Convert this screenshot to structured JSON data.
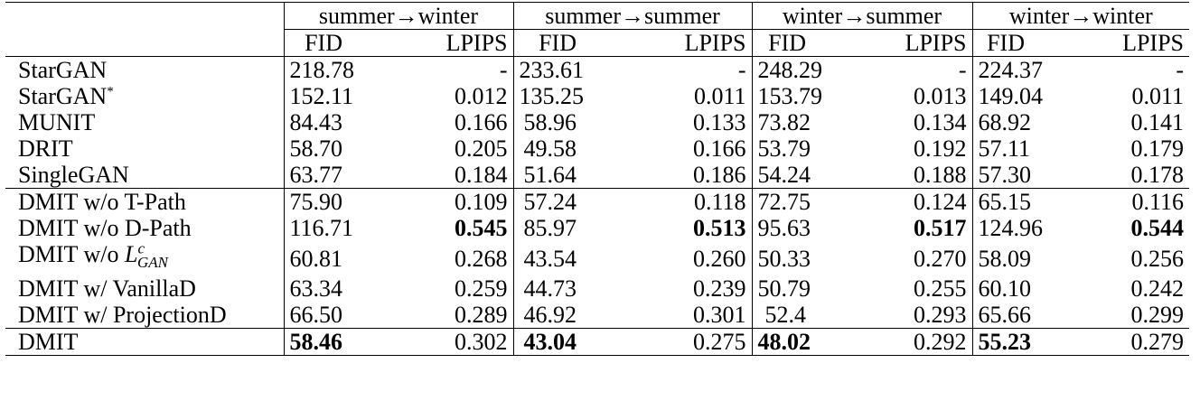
{
  "groups": [
    {
      "label": "summer→winter"
    },
    {
      "label": "summer→summer"
    },
    {
      "label": "winter→summer"
    },
    {
      "label": "winter→winter"
    }
  ],
  "sub_headers": {
    "fid": "FID",
    "lpips": "LPIPS"
  },
  "rows": [
    {
      "method": "StarGAN",
      "cells": [
        [
          "218.78",
          "-"
        ],
        [
          "233.61",
          "-"
        ],
        [
          "248.29",
          "-"
        ],
        [
          "224.37",
          "-"
        ]
      ]
    },
    {
      "method": "StarGAN*",
      "cells": [
        [
          "152.11",
          "0.012"
        ],
        [
          "135.25",
          "0.011"
        ],
        [
          "153.79",
          "0.013"
        ],
        [
          "149.04",
          "0.011"
        ]
      ]
    },
    {
      "method": "MUNIT",
      "cells": [
        [
          "84.43",
          "0.166"
        ],
        [
          "58.96",
          "0.133"
        ],
        [
          "73.82",
          "0.134"
        ],
        [
          "68.92",
          "0.141"
        ]
      ]
    },
    {
      "method": "DRIT",
      "cells": [
        [
          "58.70",
          "0.205"
        ],
        [
          "49.58",
          "0.166"
        ],
        [
          "53.79",
          "0.192"
        ],
        [
          "57.11",
          "0.179"
        ]
      ]
    },
    {
      "method": "SingleGAN",
      "cells": [
        [
          "63.77",
          "0.184"
        ],
        [
          "51.64",
          "0.186"
        ],
        [
          "54.24",
          "0.188"
        ],
        [
          "57.30",
          "0.178"
        ]
      ]
    },
    {
      "method": "DMIT w/o T-Path",
      "cells": [
        [
          "75.90",
          "0.109"
        ],
        [
          "57.24",
          "0.118"
        ],
        [
          "72.75",
          "0.124"
        ],
        [
          "65.15",
          "0.116"
        ]
      ]
    },
    {
      "method": "DMIT w/o D-Path",
      "cells": [
        [
          "116.71",
          "0.545"
        ],
        [
          "85.97",
          "0.513"
        ],
        [
          "95.63",
          "0.517"
        ],
        [
          "124.96",
          "0.544"
        ]
      ]
    },
    {
      "method": "DMIT w/o L^c_GAN",
      "cells": [
        [
          "60.81",
          "0.268"
        ],
        [
          "43.54",
          "0.260"
        ],
        [
          "50.33",
          "0.270"
        ],
        [
          "58.09",
          "0.256"
        ]
      ]
    },
    {
      "method": "DMIT w/ VanillaD",
      "cells": [
        [
          "63.34",
          "0.259"
        ],
        [
          "44.73",
          "0.239"
        ],
        [
          "50.79",
          "0.255"
        ],
        [
          "60.10",
          "0.242"
        ]
      ]
    },
    {
      "method": "DMIT w/ ProjectionD",
      "cells": [
        [
          "66.50",
          "0.289"
        ],
        [
          "46.92",
          "0.301"
        ],
        [
          "52.4",
          "0.293"
        ],
        [
          "65.66",
          "0.299"
        ]
      ]
    },
    {
      "method": "DMIT",
      "cells": [
        [
          "58.46",
          "0.302"
        ],
        [
          "43.04",
          "0.275"
        ],
        [
          "48.02",
          "0.292"
        ],
        [
          "55.23",
          "0.279"
        ]
      ]
    }
  ],
  "bold": {
    "6": [
      false,
      true,
      false,
      true,
      false,
      true,
      false,
      true
    ],
    "10": [
      true,
      false,
      true,
      false,
      true,
      false,
      true,
      false
    ]
  },
  "method_parts": {
    "stargan_star_base": "StarGAN",
    "stargan_star_sup": "*",
    "lgan_prefix": "DMIT w/o ",
    "lgan_symbol": "L",
    "lgan_sup": "c",
    "lgan_sub": "GAN"
  }
}
